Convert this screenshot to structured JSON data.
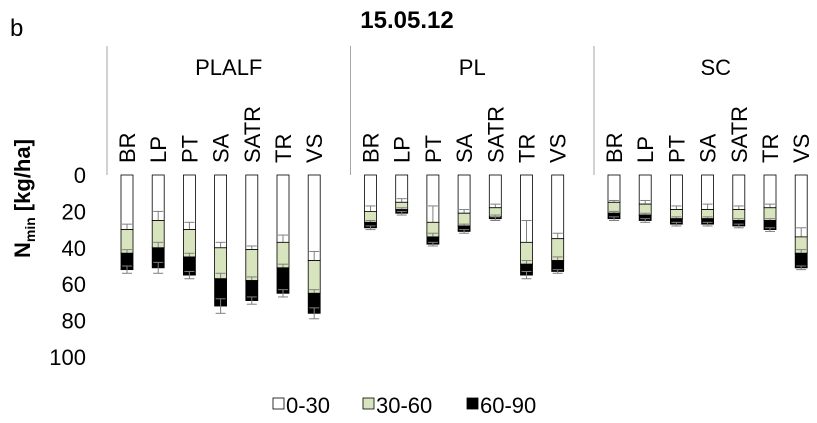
{
  "panel_letter": "b",
  "chart_data": {
    "type": "bar",
    "subtype": "stacked-downward",
    "title": "15.05.12",
    "ylabel_main": "N",
    "ylabel_sub": "min",
    "ylabel_unit": "[kg/ha]",
    "ylim": [
      0,
      100
    ],
    "yticks": [
      0,
      20,
      40,
      60,
      80,
      100
    ],
    "y_inverted": true,
    "groups": [
      {
        "name": "PLALF",
        "categories": [
          "BR",
          "LP",
          "PT",
          "SA",
          "SATR",
          "TR",
          "VS"
        ],
        "series_values": {
          "0-30": [
            30,
            25,
            30,
            40,
            41,
            37,
            47
          ],
          "30-60": [
            13,
            15,
            15,
            17,
            17,
            14,
            18
          ],
          "60-90": [
            9,
            11,
            10,
            15,
            11,
            14,
            11
          ]
        },
        "errors": {
          "0-30": [
            3,
            5,
            4,
            3,
            2,
            4,
            5
          ],
          "30-60": [
            2,
            3,
            2,
            3,
            2,
            2,
            2
          ],
          "60-90": [
            2,
            3,
            2,
            4,
            2,
            2,
            3
          ]
        }
      },
      {
        "name": "PL",
        "categories": [
          "BR",
          "LP",
          "PT",
          "SA",
          "SATR",
          "TR",
          "VS"
        ],
        "series_values": {
          "0-30": [
            20,
            15,
            26,
            21,
            18,
            37,
            35
          ],
          "30-60": [
            6,
            4,
            8,
            7,
            5,
            12,
            12
          ],
          "60-90": [
            3,
            2,
            4,
            3,
            1,
            6,
            6
          ]
        },
        "errors": {
          "0-30": [
            3,
            2,
            9,
            2,
            2,
            12,
            3
          ],
          "30-60": [
            1,
            1,
            2,
            1,
            1,
            2,
            2
          ],
          "60-90": [
            1,
            1,
            1,
            1,
            1,
            2,
            1
          ]
        }
      },
      {
        "name": "SC",
        "categories": [
          "BR",
          "LP",
          "PT",
          "SA",
          "SATR",
          "TR",
          "VS"
        ],
        "series_values": {
          "0-30": [
            15,
            16,
            19,
            19,
            19,
            18,
            34
          ],
          "30-60": [
            6,
            6,
            5,
            5,
            6,
            7,
            9
          ],
          "60-90": [
            3,
            3,
            3,
            3,
            3,
            5,
            8
          ]
        },
        "errors": {
          "0-30": [
            1,
            2,
            2,
            3,
            2,
            2,
            5
          ],
          "30-60": [
            1,
            1,
            1,
            1,
            1,
            1,
            2
          ],
          "60-90": [
            1,
            1,
            1,
            1,
            1,
            1,
            1
          ]
        }
      }
    ],
    "series": [
      {
        "name": "0-30",
        "color": "#ffffff"
      },
      {
        "name": "30-60",
        "color": "#d7e4bd"
      },
      {
        "name": "60-90",
        "color": "#000000"
      }
    ],
    "legend_position": "bottom",
    "grid": false
  }
}
